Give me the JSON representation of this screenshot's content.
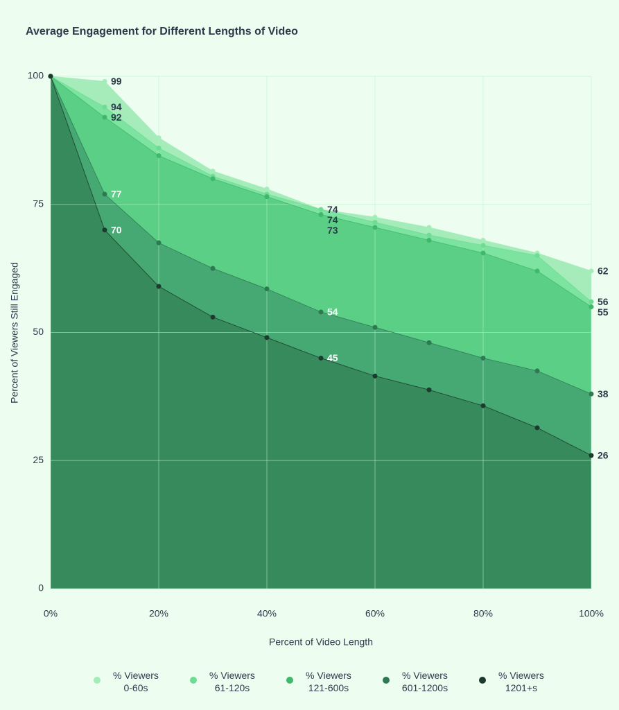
{
  "chart_data": {
    "type": "area",
    "title": "Average Engagement for Different Lengths of Video",
    "xlabel": "Percent of Video Length",
    "ylabel": "Percent of Viewers Still Engaged",
    "x": [
      0,
      10,
      20,
      30,
      40,
      50,
      60,
      70,
      80,
      90,
      100
    ],
    "xlim": [
      0,
      100
    ],
    "xticks": [
      {
        "value": 0,
        "label": "0%"
      },
      {
        "value": 20,
        "label": "20%"
      },
      {
        "value": 40,
        "label": "40%"
      },
      {
        "value": 60,
        "label": "60%"
      },
      {
        "value": 80,
        "label": "80%"
      },
      {
        "value": 100,
        "label": "100%"
      }
    ],
    "ylim": [
      0,
      100
    ],
    "yticks": [
      0,
      25,
      50,
      75,
      100
    ],
    "grid": true,
    "series": [
      {
        "name": "% Viewers\n0-60s",
        "color": "#a3edb9",
        "fill": "#a6ecbb",
        "values": [
          100,
          99,
          88,
          81.5,
          78,
          74,
          72.5,
          70.5,
          68,
          65.5,
          62
        ],
        "value_labels": [
          null,
          "99",
          null,
          null,
          null,
          "74",
          null,
          null,
          null,
          null,
          "62"
        ]
      },
      {
        "name": "% Viewers\n61-120s",
        "color": "#6edc93",
        "fill": "#7ce3a0",
        "values": [
          100,
          94,
          86,
          80.5,
          77,
          74,
          71.5,
          69,
          67,
          65,
          56
        ],
        "value_labels": [
          null,
          "94",
          null,
          null,
          null,
          "74",
          null,
          null,
          null,
          null,
          "56"
        ]
      },
      {
        "name": "% Viewers\n121-600s",
        "color": "#3fb86b",
        "fill": "#5ccf86",
        "values": [
          100,
          92,
          84.5,
          80,
          76.5,
          73,
          70.5,
          68,
          65.5,
          62,
          55
        ],
        "value_labels": [
          null,
          "92",
          null,
          null,
          null,
          "73",
          null,
          null,
          null,
          null,
          "55"
        ]
      },
      {
        "name": "% Viewers\n601-1200s",
        "color": "#2d7a52",
        "fill": "#46a872",
        "values": [
          100,
          77,
          67.5,
          62.5,
          58.5,
          54,
          51,
          48,
          45,
          42.5,
          38
        ],
        "value_labels": [
          null,
          "77",
          null,
          null,
          null,
          "54",
          null,
          null,
          null,
          null,
          "38"
        ]
      },
      {
        "name": "% Viewers\n1201+s",
        "color": "#1c3a2d",
        "fill": "#378a5c",
        "values": [
          100,
          70,
          59,
          53,
          49,
          45,
          41.5,
          38.8,
          35.7,
          31.4,
          26
        ],
        "value_labels": [
          null,
          "70",
          null,
          null,
          null,
          "45",
          null,
          null,
          null,
          null,
          "26"
        ]
      }
    ]
  }
}
